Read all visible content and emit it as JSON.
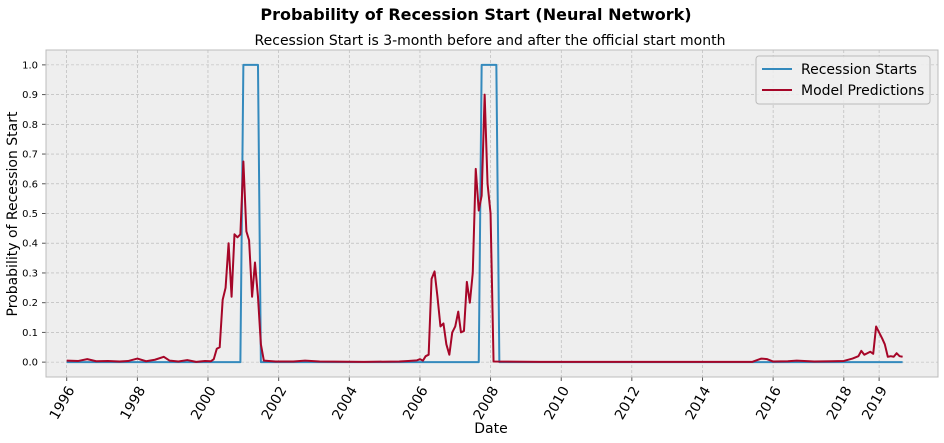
{
  "chart_data": {
    "type": "line",
    "suptitle": "Probability of Recession Start (Neural Network)",
    "title": "Recession Start is 3-month before and after the official start month",
    "xlabel": "Date",
    "ylabel": "Probability of Recession Start",
    "xlim": [
      "1995-06-01",
      "2020-09-01"
    ],
    "ylim": [
      -0.05,
      1.05
    ],
    "yticks": [
      "0.0",
      "0.1",
      "0.2",
      "0.3",
      "0.4",
      "0.5",
      "0.6",
      "0.7",
      "0.8",
      "0.9",
      "1.0"
    ],
    "xticks": [
      {
        "label": "1996",
        "date": "1996-01-01"
      },
      {
        "label": "1998",
        "date": "1998-01-01"
      },
      {
        "label": "2000",
        "date": "2000-01-01"
      },
      {
        "label": "2002",
        "date": "2002-01-01"
      },
      {
        "label": "2004",
        "date": "2004-01-01"
      },
      {
        "label": "2006",
        "date": "2006-01-01"
      },
      {
        "label": "2008",
        "date": "2008-01-01"
      },
      {
        "label": "2010",
        "date": "2010-01-01"
      },
      {
        "label": "2012",
        "date": "2012-01-01"
      },
      {
        "label": "2014",
        "date": "2014-01-01"
      },
      {
        "label": "2016",
        "date": "2016-01-01"
      },
      {
        "label": "2018",
        "date": "2018-01-01"
      },
      {
        "label": "2019",
        "date": "2019-01-01"
      }
    ],
    "grid": true,
    "legend": "top-right",
    "series": [
      {
        "name": "Recession Starts",
        "color": "#348ABD",
        "points": [
          [
            "1996-01-01",
            0
          ],
          [
            "2000-12-01",
            0
          ],
          [
            "2001-01-01",
            1
          ],
          [
            "2001-06-01",
            1
          ],
          [
            "2001-07-01",
            0
          ],
          [
            "2007-09-01",
            0
          ],
          [
            "2007-10-01",
            1
          ],
          [
            "2008-03-01",
            1
          ],
          [
            "2008-04-01",
            0
          ],
          [
            "2019-09-01",
            0
          ]
        ]
      },
      {
        "name": "Model Predictions",
        "color": "#A60628",
        "points": [
          [
            "1996-01-01",
            0.005
          ],
          [
            "1996-05-01",
            0.004
          ],
          [
            "1996-08-01",
            0.01
          ],
          [
            "1996-11-01",
            0.003
          ],
          [
            "1997-03-01",
            0.004
          ],
          [
            "1997-07-01",
            0.002
          ],
          [
            "1997-10-01",
            0.004
          ],
          [
            "1998-01-01",
            0.012
          ],
          [
            "1998-04-01",
            0.003
          ],
          [
            "1998-07-01",
            0.008
          ],
          [
            "1998-10-01",
            0.018
          ],
          [
            "1998-12-01",
            0.005
          ],
          [
            "1999-03-01",
            0.002
          ],
          [
            "1999-06-01",
            0.007
          ],
          [
            "1999-09-01",
            0.001
          ],
          [
            "1999-12-01",
            0.004
          ],
          [
            "2000-02-01",
            0.003
          ],
          [
            "2000-03-01",
            0.01
          ],
          [
            "2000-04-01",
            0.045
          ],
          [
            "2000-05-01",
            0.05
          ],
          [
            "2000-06-01",
            0.21
          ],
          [
            "2000-07-01",
            0.25
          ],
          [
            "2000-08-01",
            0.4
          ],
          [
            "2000-09-01",
            0.22
          ],
          [
            "2000-10-01",
            0.43
          ],
          [
            "2000-11-01",
            0.42
          ],
          [
            "2000-12-01",
            0.43
          ],
          [
            "2001-01-01",
            0.675
          ],
          [
            "2001-02-01",
            0.44
          ],
          [
            "2001-03-01",
            0.41
          ],
          [
            "2001-04-01",
            0.22
          ],
          [
            "2001-05-01",
            0.335
          ],
          [
            "2001-06-01",
            0.22
          ],
          [
            "2001-07-01",
            0.06
          ],
          [
            "2001-08-01",
            0.005
          ],
          [
            "2001-12-01",
            0.002
          ],
          [
            "2002-06-01",
            0.002
          ],
          [
            "2002-10-01",
            0.005
          ],
          [
            "2003-03-01",
            0.002
          ],
          [
            "2004-06-01",
            0.001
          ],
          [
            "2005-06-01",
            0.002
          ],
          [
            "2005-09-01",
            0.004
          ],
          [
            "2005-12-01",
            0.006
          ],
          [
            "2006-01-01",
            0.01
          ],
          [
            "2006-02-01",
            0.005
          ],
          [
            "2006-03-01",
            0.02
          ],
          [
            "2006-04-01",
            0.025
          ],
          [
            "2006-05-01",
            0.28
          ],
          [
            "2006-06-01",
            0.305
          ],
          [
            "2006-07-01",
            0.22
          ],
          [
            "2006-08-01",
            0.12
          ],
          [
            "2006-09-01",
            0.13
          ],
          [
            "2006-10-01",
            0.06
          ],
          [
            "2006-11-01",
            0.025
          ],
          [
            "2006-12-01",
            0.1
          ],
          [
            "2007-01-01",
            0.12
          ],
          [
            "2007-02-01",
            0.17
          ],
          [
            "2007-03-01",
            0.1
          ],
          [
            "2007-04-01",
            0.105
          ],
          [
            "2007-05-01",
            0.27
          ],
          [
            "2007-06-01",
            0.2
          ],
          [
            "2007-07-01",
            0.3
          ],
          [
            "2007-08-01",
            0.65
          ],
          [
            "2007-09-01",
            0.51
          ],
          [
            "2007-10-01",
            0.56
          ],
          [
            "2007-11-01",
            0.9
          ],
          [
            "2007-12-01",
            0.6
          ],
          [
            "2008-01-01",
            0.5
          ],
          [
            "2008-02-01",
            0.002
          ],
          [
            "2009-06-01",
            0.001
          ],
          [
            "2011-06-01",
            0.001
          ],
          [
            "2013-06-01",
            0.001
          ],
          [
            "2015-06-01",
            0.001
          ],
          [
            "2015-09-01",
            0.012
          ],
          [
            "2015-11-01",
            0.01
          ],
          [
            "2016-01-01",
            0.002
          ],
          [
            "2016-06-01",
            0.003
          ],
          [
            "2016-09-01",
            0.005
          ],
          [
            "2017-03-01",
            0.002
          ],
          [
            "2017-09-01",
            0.003
          ],
          [
            "2018-01-01",
            0.004
          ],
          [
            "2018-04-01",
            0.012
          ],
          [
            "2018-06-01",
            0.02
          ],
          [
            "2018-07-01",
            0.038
          ],
          [
            "2018-08-01",
            0.025
          ],
          [
            "2018-09-01",
            0.03
          ],
          [
            "2018-10-01",
            0.035
          ],
          [
            "2018-11-01",
            0.028
          ],
          [
            "2018-12-01",
            0.12
          ],
          [
            "2019-01-01",
            0.1
          ],
          [
            "2019-02-01",
            0.08
          ],
          [
            "2019-03-01",
            0.06
          ],
          [
            "2019-04-01",
            0.018
          ],
          [
            "2019-05-01",
            0.02
          ],
          [
            "2019-06-01",
            0.018
          ],
          [
            "2019-07-01",
            0.03
          ],
          [
            "2019-08-01",
            0.02
          ],
          [
            "2019-09-01",
            0.018
          ]
        ]
      }
    ]
  }
}
